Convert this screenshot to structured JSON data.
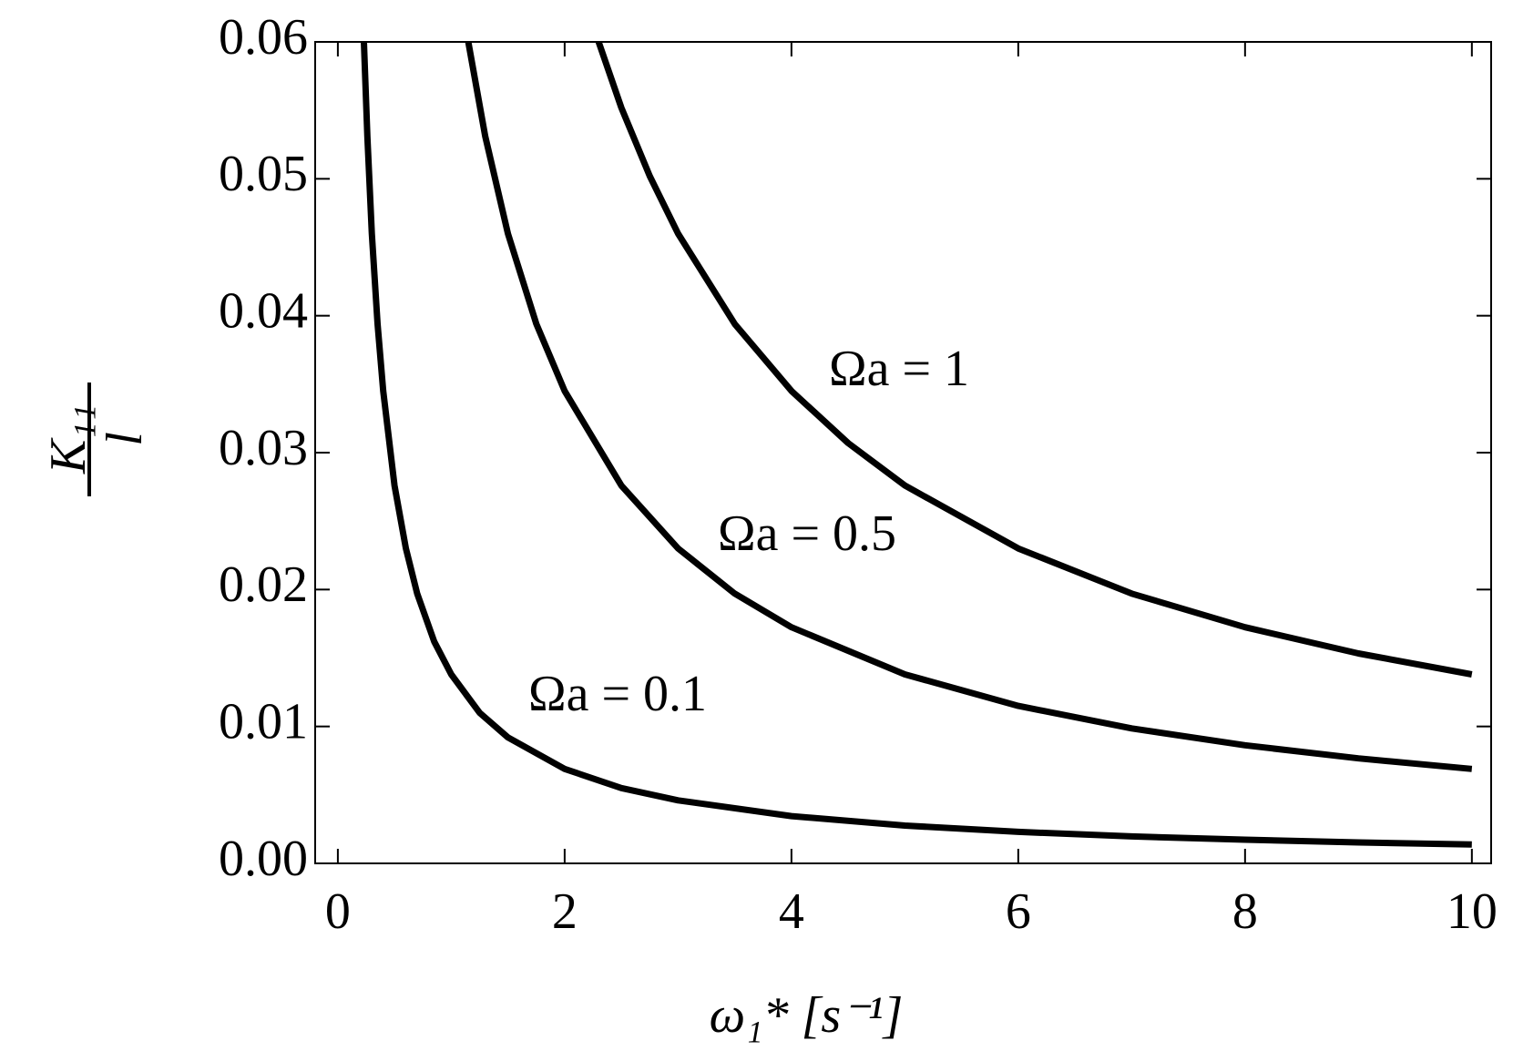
{
  "chart_data": {
    "type": "line",
    "xlabel": "ω₁* [s⁻¹]",
    "ylabel": {
      "numerator": "K₁₁",
      "denominator": "l"
    },
    "xlim": [
      -0.2,
      10.17
    ],
    "ylim": [
      0,
      0.06
    ],
    "xticks": [
      0,
      2,
      4,
      6,
      8,
      10
    ],
    "yticks": [
      {
        "value": 0,
        "label": "0.00"
      },
      0.01,
      0.02,
      0.03,
      0.04,
      0.05,
      0.06
    ],
    "grid": false,
    "series": [
      {
        "name": "Ωa = 0.1",
        "color": "#000000",
        "x": [
          0.23,
          0.26,
          0.3,
          0.35,
          0.4,
          0.5,
          0.6,
          0.7,
          0.85,
          1,
          1.25,
          1.5,
          2,
          2.5,
          3,
          4,
          5,
          6,
          7,
          8,
          9,
          10
        ],
        "values": [
          0.06,
          0.0531,
          0.046,
          0.0394,
          0.0345,
          0.0276,
          0.023,
          0.0197,
          0.0162,
          0.0138,
          0.011,
          0.0092,
          0.0069,
          0.0055,
          0.0046,
          0.00345,
          0.00276,
          0.0023,
          0.00197,
          0.00173,
          0.00153,
          0.00138
        ]
      },
      {
        "name": "Ωa = 0.5",
        "color": "#000000",
        "x": [
          1.15,
          1.3,
          1.5,
          1.75,
          2,
          2.5,
          3,
          3.5,
          4,
          5,
          6,
          7,
          8,
          9,
          10
        ],
        "values": [
          0.06,
          0.0531,
          0.046,
          0.0394,
          0.0345,
          0.0276,
          0.023,
          0.0197,
          0.01725,
          0.0138,
          0.0115,
          0.00986,
          0.00863,
          0.00767,
          0.0069
        ]
      },
      {
        "name": "Ωa = 1",
        "color": "#000000",
        "x": [
          2.3,
          2.5,
          2.75,
          3,
          3.5,
          4,
          4.5,
          5,
          6,
          7,
          8,
          9,
          10
        ],
        "values": [
          0.06,
          0.0552,
          0.0502,
          0.046,
          0.0394,
          0.0345,
          0.0307,
          0.0276,
          0.023,
          0.0197,
          0.01725,
          0.01533,
          0.0138
        ]
      }
    ]
  }
}
